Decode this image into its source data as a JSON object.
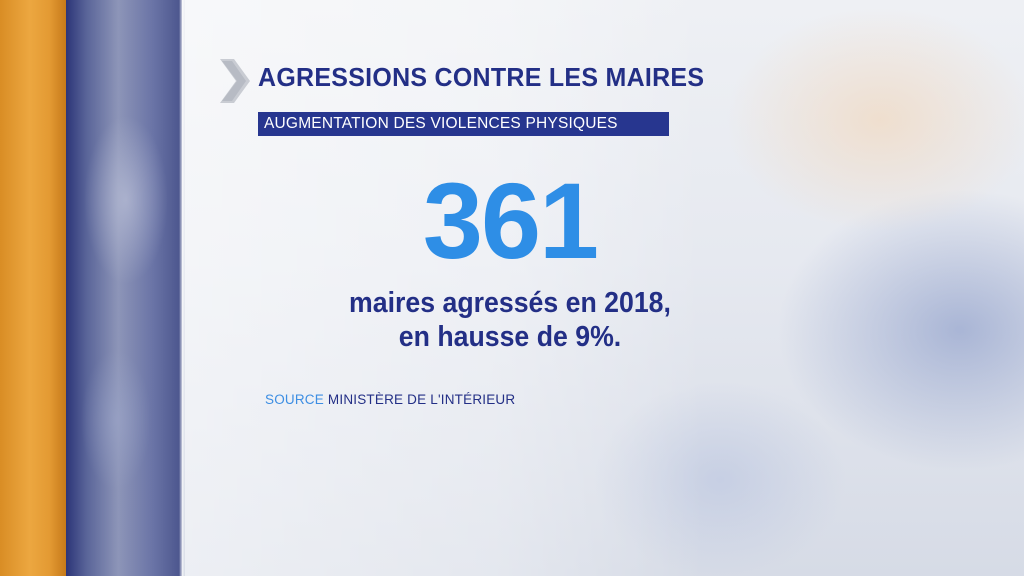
{
  "graphic": {
    "title": "AGRESSIONS CONTRE LES MAIRES",
    "subtitle": "AUGMENTATION DES VIOLENCES PHYSIQUES",
    "big_number": "361",
    "caption_line1": "maires agressés en 2018,",
    "caption_line2": "en hausse de 9%.",
    "source_label": "SOURCE",
    "source_value": "MINISTÈRE DE L'INTÉRIEUR",
    "chevron_icon": "chevron-right-icon"
  },
  "colors": {
    "title": "#232f86",
    "subtitle_bg": "#27368f",
    "big_number": "#2e8ee6",
    "source_label": "#3d8ee3",
    "orange_stripe": "#eca740",
    "blue_stripe": "#4a548c"
  }
}
